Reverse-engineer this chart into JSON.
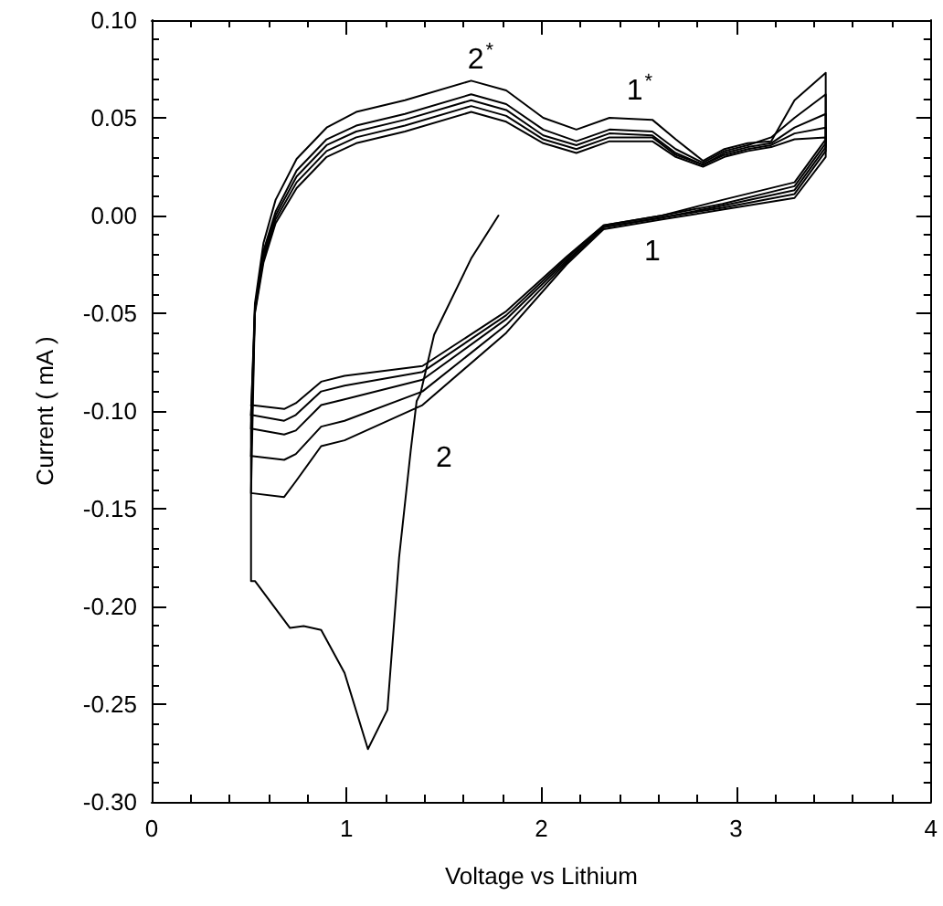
{
  "chart_data": {
    "type": "line",
    "xlabel": "Voltage vs Lithium",
    "ylabel": "Current ( mA )",
    "xlim": [
      0,
      4
    ],
    "ylim": [
      -0.3,
      0.1
    ],
    "xticks": [
      0,
      1,
      2,
      3,
      4
    ],
    "yticks": [
      {
        "value": -0.3,
        "label": "-0.30"
      },
      {
        "value": -0.25,
        "label": "-0.25"
      },
      {
        "value": -0.2,
        "label": "-0.20"
      },
      {
        "value": -0.15,
        "label": "-0.15"
      },
      {
        "value": -0.1,
        "label": "-0.10"
      },
      {
        "value": -0.05,
        "label": "-0.05"
      },
      {
        "value": 0,
        "label": "0.00"
      },
      {
        "value": 0.05,
        "label": "0.05"
      },
      {
        "value": 0.1,
        "label": "0.10"
      }
    ],
    "grid": false,
    "marker": "none",
    "line_style": "solid",
    "annotations": [
      "2$^{*}$",
      "1$^{*}$",
      "1",
      "2"
    ],
    "series": [
      {
        "color": "#000000",
        "x": [
          1.78,
          1.64,
          1.45,
          1.38,
          1.36,
          1.33,
          1.27,
          1.21,
          1.11,
          0.99,
          0.87,
          0.78,
          0.71,
          0.53,
          0.51,
          0.51,
          0.53,
          0.574,
          0.636,
          0.744,
          0.898,
          1.05,
          1.3,
          1.64,
          1.82,
          2.01,
          2.18,
          2.35,
          2.57,
          2.69,
          2.83,
          2.94,
          3.06,
          3.18,
          3.3,
          3.46,
          3.46,
          3.3,
          2.93,
          2.62,
          2.32,
          2.13,
          1.82,
          1.39,
          0.99,
          0.87,
          0.74,
          0.68,
          0.51
        ],
        "values": [
          0.0,
          -0.022,
          -0.061,
          -0.091,
          -0.095,
          -0.12,
          -0.175,
          -0.253,
          -0.273,
          -0.234,
          -0.212,
          -0.21,
          -0.211,
          -0.187,
          -0.187,
          -0.102,
          -0.045,
          -0.014,
          0.008,
          0.029,
          0.045,
          0.053,
          0.059,
          0.069,
          0.064,
          0.05,
          0.044,
          0.05,
          0.049,
          0.039,
          0.028,
          0.034,
          0.037,
          0.038,
          0.059,
          0.073,
          0.03,
          0.009,
          0.003,
          -0.002,
          -0.007,
          -0.025,
          -0.06,
          -0.097,
          -0.115,
          -0.118,
          -0.136,
          -0.144,
          -0.142
        ]
      },
      {
        "color": "#000000",
        "x": [
          0.51,
          0.53,
          0.574,
          0.636,
          0.744,
          0.898,
          1.05,
          1.3,
          1.64,
          1.82,
          2.01,
          2.18,
          2.35,
          2.57,
          2.69,
          2.83,
          2.94,
          3.06,
          3.18,
          3.3,
          3.46,
          3.46,
          3.3,
          2.93,
          2.62,
          2.32,
          2.13,
          1.82,
          1.39,
          0.99,
          0.87,
          0.74,
          0.68,
          0.51
        ],
        "values": [
          -0.142,
          -0.047,
          -0.018,
          0.002,
          0.023,
          0.039,
          0.046,
          0.052,
          0.062,
          0.057,
          0.044,
          0.038,
          0.044,
          0.043,
          0.034,
          0.027,
          0.033,
          0.036,
          0.04,
          0.05,
          0.062,
          0.033,
          0.011,
          0.004,
          -0.001,
          -0.006,
          -0.024,
          -0.056,
          -0.09,
          -0.105,
          -0.108,
          -0.122,
          -0.125,
          -0.123
        ]
      },
      {
        "color": "#000000",
        "x": [
          0.51,
          0.53,
          0.574,
          0.636,
          0.744,
          0.898,
          1.05,
          1.3,
          1.64,
          1.82,
          2.01,
          2.18,
          2.35,
          2.57,
          2.69,
          2.83,
          2.94,
          3.06,
          3.18,
          3.3,
          3.46,
          3.46,
          3.3,
          2.93,
          2.62,
          2.32,
          2.13,
          1.82,
          1.39,
          0.99,
          0.87,
          0.74,
          0.68,
          0.51
        ],
        "values": [
          -0.123,
          -0.048,
          -0.02,
          0.0,
          0.02,
          0.036,
          0.043,
          0.049,
          0.059,
          0.054,
          0.041,
          0.036,
          0.042,
          0.041,
          0.032,
          0.026,
          0.032,
          0.035,
          0.037,
          0.045,
          0.052,
          0.035,
          0.013,
          0.005,
          -0.001,
          -0.006,
          -0.023,
          -0.053,
          -0.084,
          -0.094,
          -0.097,
          -0.11,
          -0.112,
          -0.109
        ]
      },
      {
        "color": "#000000",
        "x": [
          0.51,
          0.53,
          0.574,
          0.636,
          0.744,
          0.898,
          1.05,
          1.3,
          1.64,
          1.82,
          2.01,
          2.18,
          2.35,
          2.57,
          2.69,
          2.83,
          2.94,
          3.06,
          3.18,
          3.3,
          3.46,
          3.46,
          3.3,
          2.93,
          2.62,
          2.32,
          2.13,
          1.82,
          1.39,
          0.99,
          0.87,
          0.74,
          0.68,
          0.51
        ],
        "values": [
          -0.109,
          -0.049,
          -0.022,
          -0.002,
          0.017,
          0.033,
          0.04,
          0.046,
          0.056,
          0.051,
          0.039,
          0.034,
          0.04,
          0.04,
          0.031,
          0.026,
          0.031,
          0.034,
          0.036,
          0.042,
          0.045,
          0.037,
          0.015,
          0.006,
          0.0,
          -0.005,
          -0.022,
          -0.051,
          -0.08,
          -0.087,
          -0.09,
          -0.102,
          -0.105,
          -0.102
        ]
      },
      {
        "color": "#000000",
        "x": [
          0.51,
          0.53,
          0.574,
          0.636,
          0.744,
          0.898,
          1.05,
          1.3,
          1.64,
          1.82,
          2.01,
          2.18,
          2.35,
          2.57,
          2.69,
          2.83,
          2.94,
          3.06,
          3.18,
          3.3,
          3.46,
          3.46,
          3.3,
          2.93,
          2.62,
          2.32,
          2.13,
          1.82,
          1.39,
          0.99,
          0.87,
          0.74,
          0.68,
          0.51
        ],
        "values": [
          -0.102,
          -0.05,
          -0.024,
          -0.004,
          0.014,
          0.03,
          0.037,
          0.043,
          0.053,
          0.048,
          0.037,
          0.032,
          0.038,
          0.038,
          0.03,
          0.025,
          0.03,
          0.033,
          0.035,
          0.039,
          0.04,
          0.039,
          0.017,
          0.008,
          0.0,
          -0.005,
          -0.021,
          -0.049,
          -0.077,
          -0.082,
          -0.085,
          -0.096,
          -0.099,
          -0.097
        ]
      }
    ]
  }
}
